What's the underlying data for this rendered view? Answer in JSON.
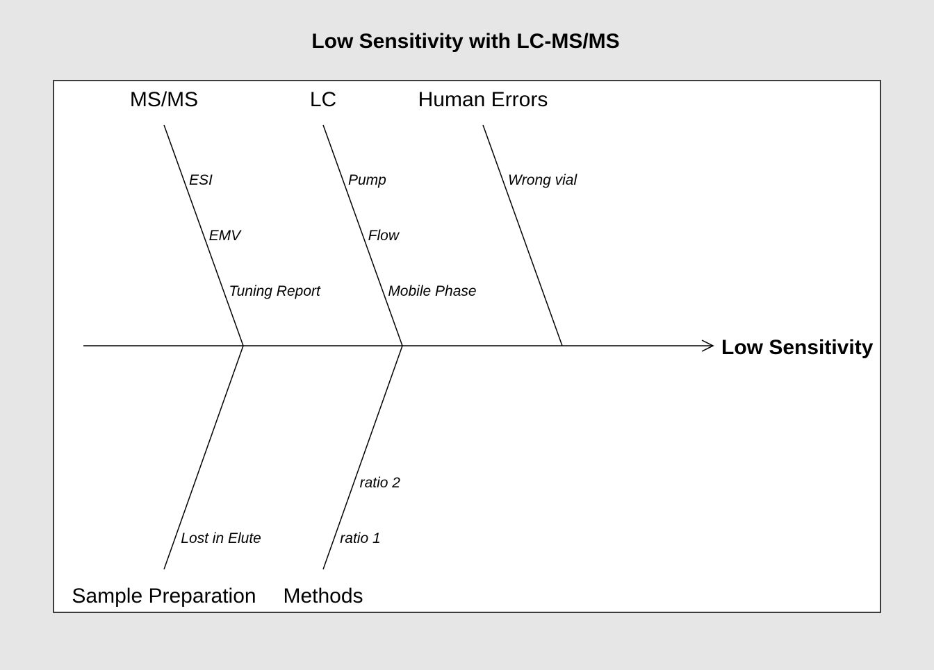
{
  "title": "Low Sensitivity with LC-MS/MS",
  "effect": "Low Sensitivity",
  "colors": {
    "background": "#e6e6e6",
    "panel": "#ffffff",
    "line": "#000000"
  },
  "top_branches": [
    {
      "category": "MS/MS",
      "causes": [
        "ESI",
        "EMV",
        "Tuning Report"
      ]
    },
    {
      "category": "LC",
      "causes": [
        "Pump",
        "Flow",
        "Mobile Phase"
      ]
    },
    {
      "category": "Human Errors",
      "causes": [
        "Wrong vial"
      ]
    }
  ],
  "bottom_branches": [
    {
      "category": "Sample Preparation",
      "causes": [
        "Lost in Elute"
      ]
    },
    {
      "category": "Methods",
      "causes": [
        "ratio 2",
        "ratio 1"
      ]
    }
  ]
}
